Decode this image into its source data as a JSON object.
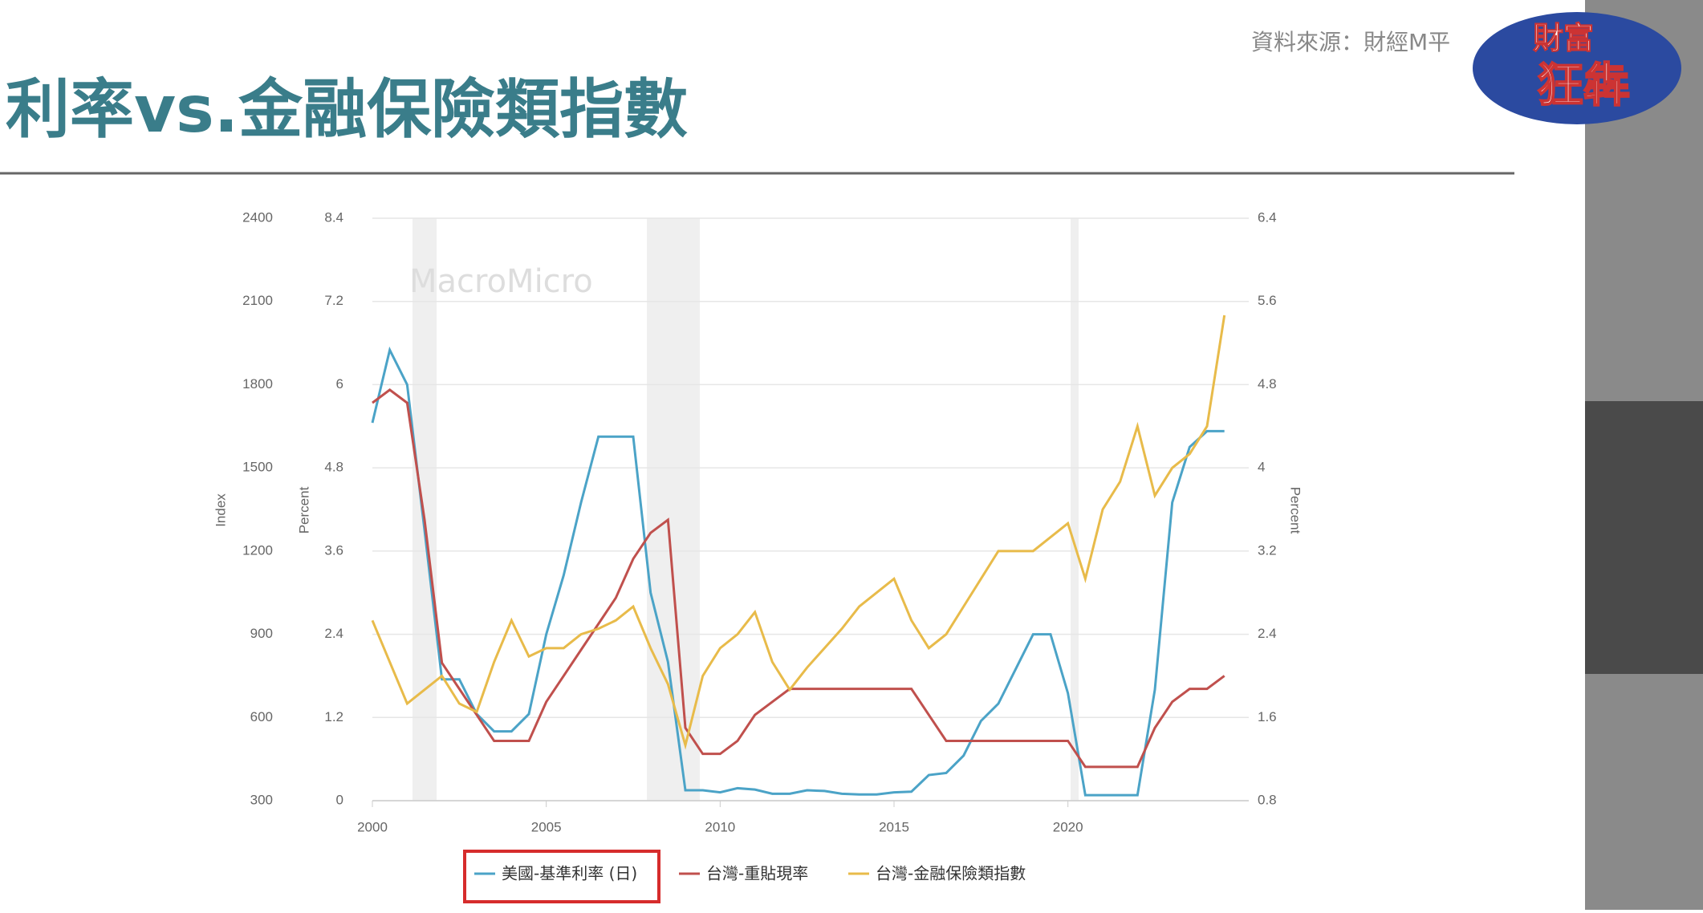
{
  "header": {
    "title": "利率vs.金融保險類指數",
    "source": "資料來源：財經M平",
    "logo_top": "財富",
    "logo_bottom": "狂犇"
  },
  "chart_data": {
    "type": "line",
    "watermark": "MacroMicro",
    "ylabel": "Index",
    "y2label": "Percent",
    "y3label": "Percent",
    "x": [
      2000,
      2000.5,
      2001,
      2001.5,
      2002,
      2002.5,
      2003,
      2003.5,
      2004,
      2004.5,
      2005,
      2005.5,
      2006,
      2006.5,
      2007,
      2007.5,
      2008,
      2008.5,
      2009,
      2009.5,
      2010,
      2010.5,
      2011,
      2011.5,
      2012,
      2012.5,
      2013,
      2013.5,
      2014,
      2014.5,
      2015,
      2015.5,
      2016,
      2016.5,
      2017,
      2017.5,
      2018,
      2018.5,
      2019,
      2019.5,
      2020,
      2020.5,
      2021,
      2021.5,
      2022,
      2022.5,
      2023,
      2023.5,
      2024,
      2024.5
    ],
    "xlim": [
      2000,
      2025.2
    ],
    "xticks": [
      2000,
      2005,
      2010,
      2015,
      2020
    ],
    "ylim": [
      300,
      2400
    ],
    "yticks": [
      300,
      600,
      900,
      1200,
      1500,
      1800,
      2100,
      2400
    ],
    "y2lim": [
      0,
      8.4
    ],
    "y2ticks": [
      0,
      1.2,
      2.4,
      3.6,
      4.8,
      6,
      7.2,
      8.4
    ],
    "y3lim": [
      0.8,
      6.4
    ],
    "y3ticks": [
      0.8,
      1.6,
      2.4,
      3.2,
      4,
      4.8,
      5.6,
      6.4
    ],
    "grid": true,
    "series": [
      {
        "name": "美國-基準利率 (日)",
        "color": "#4ba3c7",
        "axis": "y2",
        "values": [
          5.45,
          6.5,
          6.0,
          3.9,
          1.75,
          1.75,
          1.25,
          1.0,
          1.0,
          1.25,
          2.4,
          3.25,
          4.3,
          5.25,
          5.25,
          5.25,
          3.0,
          2.0,
          0.15,
          0.15,
          0.12,
          0.18,
          0.16,
          0.1,
          0.1,
          0.15,
          0.14,
          0.1,
          0.09,
          0.09,
          0.12,
          0.13,
          0.37,
          0.4,
          0.65,
          1.15,
          1.4,
          1.9,
          2.4,
          2.4,
          1.55,
          0.08,
          0.08,
          0.08,
          0.08,
          1.6,
          4.3,
          5.1,
          5.33,
          5.33
        ]
      },
      {
        "name": "台灣-重貼現率",
        "color": "#c0504d",
        "axis": "y3",
        "values": [
          4.625,
          4.75,
          4.625,
          3.5,
          2.125,
          1.875,
          1.625,
          1.375,
          1.375,
          1.375,
          1.75,
          2.0,
          2.25,
          2.5,
          2.75,
          3.125,
          3.375,
          3.5,
          1.5,
          1.25,
          1.25,
          1.375,
          1.625,
          1.75,
          1.875,
          1.875,
          1.875,
          1.875,
          1.875,
          1.875,
          1.875,
          1.875,
          1.625,
          1.375,
          1.375,
          1.375,
          1.375,
          1.375,
          1.375,
          1.375,
          1.375,
          1.125,
          1.125,
          1.125,
          1.125,
          1.5,
          1.75,
          1.875,
          1.875,
          2.0
        ]
      },
      {
        "name": "台灣-金融保險類指數",
        "color": "#e8bb4a",
        "axis": "y",
        "values": [
          950,
          800,
          650,
          700,
          750,
          650,
          620,
          800,
          950,
          820,
          850,
          850,
          900,
          920,
          950,
          1000,
          850,
          720,
          500,
          750,
          850,
          900,
          980,
          800,
          700,
          780,
          850,
          920,
          1000,
          1050,
          1100,
          950,
          850,
          900,
          1000,
          1100,
          1200,
          1200,
          1200,
          1250,
          1300,
          1100,
          1350,
          1450,
          1650,
          1400,
          1500,
          1550,
          1650,
          2050
        ]
      }
    ]
  }
}
